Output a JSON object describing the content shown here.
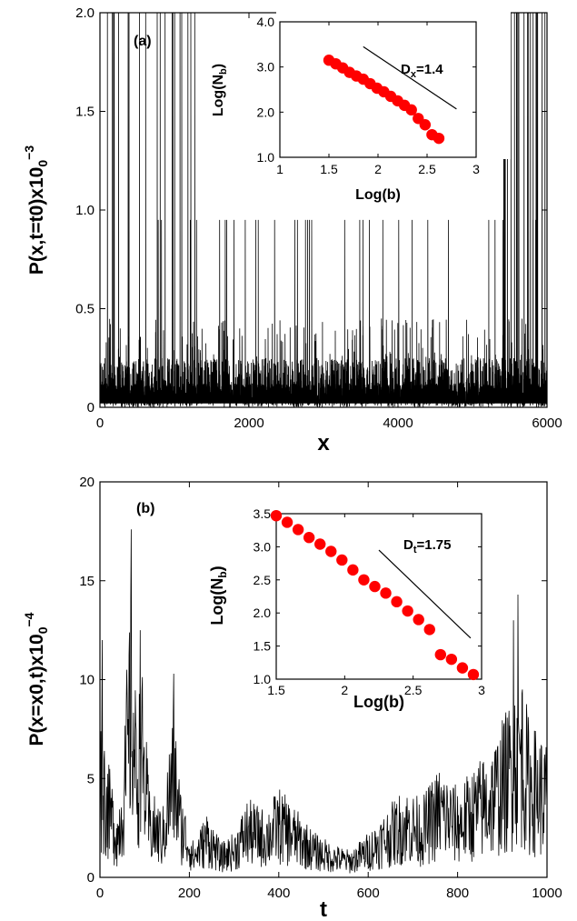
{
  "chart_data": [
    {
      "type": "line",
      "panel": "(a)",
      "xlabel": "x",
      "ylabel": "P(x,t=t0)x10",
      "ylabel_sub": "0",
      "ylabel_exp": "−3",
      "xlim": [
        0,
        6000
      ],
      "ylim": [
        0,
        2.0
      ],
      "xticks": [
        0,
        2000,
        4000,
        6000
      ],
      "yticks": [
        0,
        0.5,
        1.0,
        1.5,
        2.0
      ],
      "xtick_labels": [
        "0",
        "2000",
        "4000",
        "6000"
      ],
      "ytick_labels": [
        "0",
        "0.5",
        "1.0",
        "1.5",
        "2.0"
      ],
      "series": [
        {
          "description_values": "dense spiky signal: baseline 0-0.25, many spikes up to 0.95, bursts above 2.0 near x=0-1300 and x=5300-6000",
          "values_sample": [
            0.05,
            0.22,
            0.95,
            2.0,
            0.1,
            0.3,
            0.95,
            0.08
          ]
        }
      ],
      "inset": {
        "type": "scatter",
        "xlabel": "Log(b)",
        "ylabel": "Log(N",
        "ylabel_sub": "b",
        "ylabel_close": ")",
        "xlim": [
          1,
          3
        ],
        "ylim": [
          1.0,
          4.0
        ],
        "xticks": [
          1,
          1.5,
          2,
          2.5,
          3
        ],
        "yticks": [
          1.0,
          2.0,
          3.0,
          4.0
        ],
        "xtick_labels": [
          "1",
          "1.5",
          "2",
          "2.5",
          "3"
        ],
        "ytick_labels": [
          "1.0",
          "2.0",
          "3.0",
          "4.0"
        ],
        "points": {
          "x": [
            1.5,
            1.57,
            1.64,
            1.71,
            1.78,
            1.85,
            1.92,
            1.99,
            2.06,
            2.13,
            2.2,
            2.27,
            2.34,
            2.41,
            2.48,
            2.55,
            2.62
          ],
          "y": [
            3.15,
            3.07,
            2.98,
            2.88,
            2.8,
            2.73,
            2.63,
            2.53,
            2.45,
            2.35,
            2.25,
            2.15,
            2.05,
            1.86,
            1.72,
            1.5,
            1.42
          ]
        },
        "reference_line": {
          "x": [
            1.85,
            2.8
          ],
          "y": [
            3.45,
            2.07
          ]
        },
        "annotation_main": "D",
        "annotation_sub": "x",
        "annotation_rest": "=1.4",
        "marker_color": "#ff0000"
      }
    },
    {
      "type": "line",
      "panel": "(b)",
      "xlabel": "t",
      "ylabel": "P(x=x0,t)x10",
      "ylabel_sub": "0",
      "ylabel_exp": "−4",
      "xlim": [
        0,
        1000
      ],
      "ylim": [
        0,
        20
      ],
      "xticks": [
        0,
        200,
        400,
        600,
        800,
        1000
      ],
      "yticks": [
        0,
        5,
        10,
        15,
        20
      ],
      "xtick_labels": [
        "0",
        "200",
        "400",
        "600",
        "800",
        "1000"
      ],
      "ytick_labels": [
        "0",
        "5",
        "10",
        "15",
        "20"
      ],
      "series": [
        {
          "description_values": "noisy time series: peaks near t=70 (17.6), t=90 (12.5), t=165 (10.3), t=935 (14.3); low near t=200-320 and 500-560",
          "values_sample": [
            8.5,
            2,
            17.6,
            12.5,
            10.3,
            1.5,
            4.5,
            3,
            2,
            1,
            3,
            5,
            8,
            14.3,
            6
          ]
        }
      ],
      "inset": {
        "type": "scatter",
        "xlabel": "Log(b)",
        "ylabel": "Log(N",
        "ylabel_sub": "b",
        "ylabel_close": ")",
        "xlim": [
          1.5,
          3
        ],
        "ylim": [
          1.0,
          3.5
        ],
        "xticks": [
          1.5,
          2,
          2.5,
          3
        ],
        "yticks": [
          1.0,
          1.5,
          2.0,
          2.5,
          3.0,
          3.5
        ],
        "xtick_labels": [
          "1.5",
          "2",
          "2.5",
          "3"
        ],
        "ytick_labels": [
          "1.0",
          "1.5",
          "2.0",
          "2.5",
          "3.0",
          "3.5"
        ],
        "points": {
          "x": [
            1.5,
            1.58,
            1.66,
            1.74,
            1.82,
            1.9,
            1.98,
            2.06,
            2.14,
            2.22,
            2.3,
            2.38,
            2.46,
            2.54,
            2.62,
            2.7,
            2.78,
            2.86,
            2.94
          ],
          "y": [
            3.47,
            3.37,
            3.26,
            3.14,
            3.04,
            2.93,
            2.8,
            2.65,
            2.5,
            2.4,
            2.3,
            2.17,
            2.03,
            1.9,
            1.75,
            1.37,
            1.3,
            1.17,
            1.07
          ]
        },
        "reference_line": {
          "x": [
            2.25,
            2.92
          ],
          "y": [
            2.95,
            1.62
          ]
        },
        "annotation_main": "D",
        "annotation_sub": "t",
        "annotation_rest": "=1.75",
        "marker_color": "#ff0000"
      }
    }
  ]
}
